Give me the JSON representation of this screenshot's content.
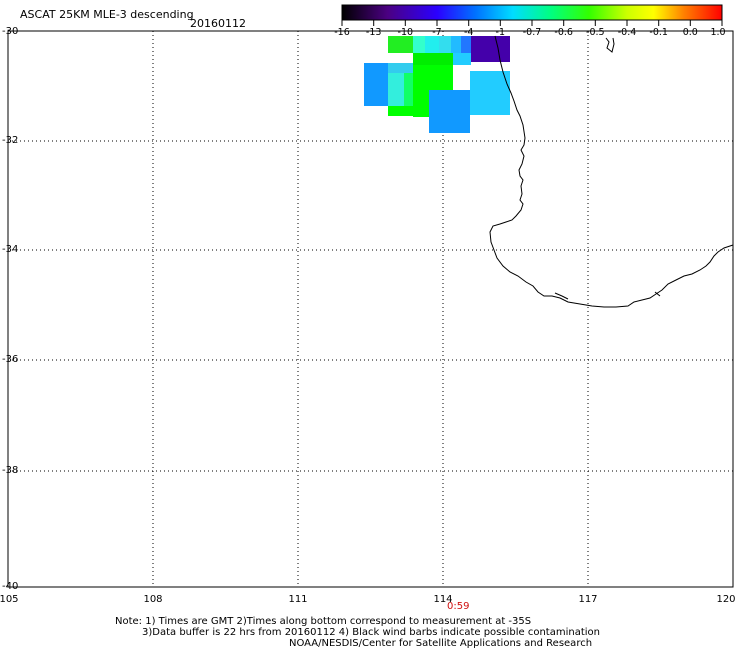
{
  "header": {
    "title": "ASCAT 25KM MLE-3 descending",
    "date": "20160112"
  },
  "colorbar": {
    "ticks": [
      "-16",
      "-13",
      "-10",
      "-7",
      "-4",
      "-1",
      "-0.7",
      "-0.6",
      "-0.5",
      "-0.4",
      "-0.1",
      "0.0",
      "1.0"
    ]
  },
  "axes": {
    "lat_labels": [
      "-30",
      "-32",
      "-34",
      "-36",
      "-38",
      "-40"
    ],
    "lon_labels": [
      "105",
      "108",
      "111",
      "114",
      "117",
      "120"
    ]
  },
  "time_label": "0:59",
  "notes": {
    "line1": "Note: 1) Times are GMT 2)Times along bottom correspond to measurement at -35S",
    "line2": "3)Data buffer is 22 hrs from 20160112 4) Black wind barbs indicate possible contamination",
    "line3": "NOAA/NESDIS/Center for Satellite Applications and Research"
  },
  "colors": {
    "coast": "#000000",
    "grid": "#000000",
    "time_label": "#d01010"
  }
}
